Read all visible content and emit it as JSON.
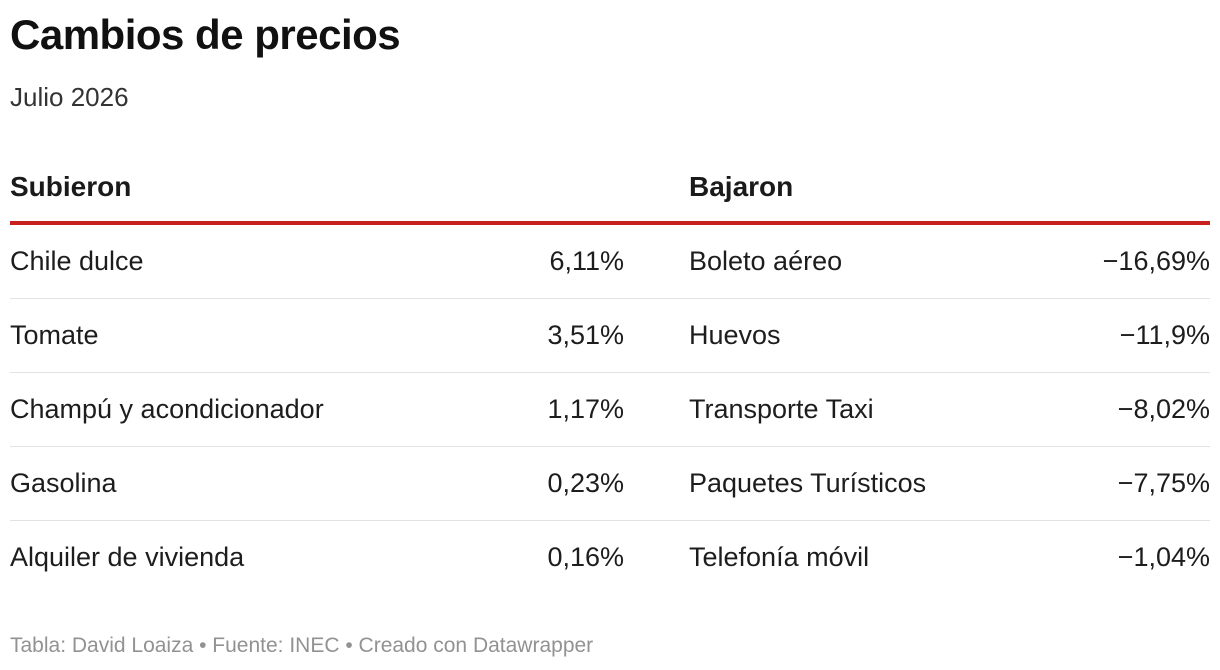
{
  "title": "Cambios de precios",
  "subtitle": "Julio 2026",
  "columns": {
    "up_header": "Subieron",
    "down_header": "Bajaron"
  },
  "rows": [
    {
      "up_item": "Chile dulce",
      "up_value": "6,11%",
      "down_item": "Boleto aéreo",
      "down_value": "−16,69%"
    },
    {
      "up_item": "Tomate",
      "up_value": "3,51%",
      "down_item": "Huevos",
      "down_value": "−11,9%"
    },
    {
      "up_item": "Champú y acondicionador",
      "up_value": "1,17%",
      "down_item": "Transporte Taxi",
      "down_value": "−8,02%"
    },
    {
      "up_item": "Gasolina",
      "up_value": "0,23%",
      "down_item": "Paquetes Turísticos",
      "down_value": "−7,75%"
    },
    {
      "up_item": "Alquiler de vivienda",
      "up_value": "0,16%",
      "down_item": "Telefonía móvil",
      "down_value": "−1,04%"
    }
  ],
  "footer": "Tabla: David Loaiza • Fuente: INEC • Creado con Datawrapper",
  "colors": {
    "accent_rule": "#c8211d",
    "footer_text": "#929292"
  },
  "chart_data": {
    "type": "table",
    "title": "Cambios de precios",
    "subtitle": "Julio 2026",
    "columns": [
      "Subieron",
      "",
      "Bajaron",
      ""
    ],
    "subieron": [
      {
        "item": "Chile dulce",
        "value": 6.11
      },
      {
        "item": "Tomate",
        "value": 3.51
      },
      {
        "item": "Champú y acondicionador",
        "value": 1.17
      },
      {
        "item": "Gasolina",
        "value": 0.23
      },
      {
        "item": "Alquiler de vivienda",
        "value": 0.16
      }
    ],
    "bajaron": [
      {
        "item": "Boleto aéreo",
        "value": -16.69
      },
      {
        "item": "Huevos",
        "value": -11.9
      },
      {
        "item": "Transporte Taxi",
        "value": -8.02
      },
      {
        "item": "Paquetes Turísticos",
        "value": -7.75
      },
      {
        "item": "Telefonía móvil",
        "value": -1.04
      }
    ]
  }
}
